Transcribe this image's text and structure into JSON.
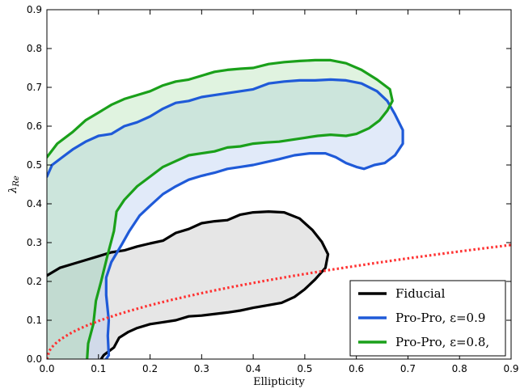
{
  "chart_data": {
    "type": "area",
    "title": "",
    "xlabel": "Ellipticity",
    "ylabel": "λ_Re",
    "xlim": [
      0.0,
      0.9
    ],
    "ylim": [
      0.0,
      0.9
    ],
    "xticks": [
      "0.0",
      "0.1",
      "0.2",
      "0.3",
      "0.4",
      "0.5",
      "0.6",
      "0.7",
      "0.8",
      "0.9"
    ],
    "yticks": [
      "0.0",
      "0.1",
      "0.2",
      "0.3",
      "0.4",
      "0.5",
      "0.6",
      "0.7",
      "0.8",
      "0.9"
    ],
    "grid": false,
    "legend_position": "lower-right",
    "series": [
      {
        "name": "Fiducial",
        "color": "#000000",
        "fill": "#c8c8c8",
        "fill_opacity": 0.45,
        "points": [
          [
            0.0,
            0.215
          ],
          [
            0.025,
            0.235
          ],
          [
            0.05,
            0.245
          ],
          [
            0.075,
            0.255
          ],
          [
            0.1,
            0.265
          ],
          [
            0.125,
            0.275
          ],
          [
            0.15,
            0.28
          ],
          [
            0.175,
            0.29
          ],
          [
            0.2,
            0.298
          ],
          [
            0.225,
            0.305
          ],
          [
            0.25,
            0.325
          ],
          [
            0.275,
            0.335
          ],
          [
            0.3,
            0.35
          ],
          [
            0.325,
            0.355
          ],
          [
            0.35,
            0.358
          ],
          [
            0.375,
            0.372
          ],
          [
            0.4,
            0.378
          ],
          [
            0.43,
            0.38
          ],
          [
            0.46,
            0.378
          ],
          [
            0.49,
            0.362
          ],
          [
            0.515,
            0.332
          ],
          [
            0.533,
            0.302
          ],
          [
            0.545,
            0.27
          ],
          [
            0.54,
            0.235
          ],
          [
            0.52,
            0.205
          ],
          [
            0.5,
            0.18
          ],
          [
            0.48,
            0.16
          ],
          [
            0.455,
            0.145
          ],
          [
            0.425,
            0.138
          ],
          [
            0.4,
            0.132
          ],
          [
            0.375,
            0.125
          ],
          [
            0.35,
            0.12
          ],
          [
            0.3,
            0.112
          ],
          [
            0.275,
            0.11
          ],
          [
            0.25,
            0.1
          ],
          [
            0.225,
            0.095
          ],
          [
            0.2,
            0.09
          ],
          [
            0.175,
            0.08
          ],
          [
            0.158,
            0.07
          ],
          [
            0.14,
            0.055
          ],
          [
            0.13,
            0.03
          ],
          [
            0.11,
            0.01
          ],
          [
            0.105,
            0.0
          ],
          [
            0.0,
            0.0
          ]
        ]
      },
      {
        "name": "Pro-Pro, ε=0.9",
        "color": "#1f5ad8",
        "fill": "#aac4ee",
        "fill_opacity": 0.35,
        "points": [
          [
            0.0,
            0.47
          ],
          [
            0.01,
            0.5
          ],
          [
            0.03,
            0.52
          ],
          [
            0.05,
            0.54
          ],
          [
            0.075,
            0.56
          ],
          [
            0.1,
            0.575
          ],
          [
            0.125,
            0.58
          ],
          [
            0.15,
            0.6
          ],
          [
            0.175,
            0.61
          ],
          [
            0.2,
            0.625
          ],
          [
            0.225,
            0.645
          ],
          [
            0.25,
            0.66
          ],
          [
            0.275,
            0.665
          ],
          [
            0.3,
            0.675
          ],
          [
            0.325,
            0.68
          ],
          [
            0.35,
            0.685
          ],
          [
            0.375,
            0.69
          ],
          [
            0.4,
            0.695
          ],
          [
            0.43,
            0.71
          ],
          [
            0.46,
            0.715
          ],
          [
            0.49,
            0.718
          ],
          [
            0.52,
            0.718
          ],
          [
            0.55,
            0.72
          ],
          [
            0.58,
            0.718
          ],
          [
            0.61,
            0.71
          ],
          [
            0.64,
            0.69
          ],
          [
            0.66,
            0.665
          ],
          [
            0.675,
            0.63
          ],
          [
            0.69,
            0.59
          ],
          [
            0.69,
            0.555
          ],
          [
            0.675,
            0.525
          ],
          [
            0.655,
            0.505
          ],
          [
            0.635,
            0.5
          ],
          [
            0.615,
            0.49
          ],
          [
            0.6,
            0.495
          ],
          [
            0.58,
            0.505
          ],
          [
            0.56,
            0.52
          ],
          [
            0.54,
            0.53
          ],
          [
            0.51,
            0.53
          ],
          [
            0.48,
            0.525
          ],
          [
            0.45,
            0.515
          ],
          [
            0.4,
            0.5
          ],
          [
            0.375,
            0.495
          ],
          [
            0.35,
            0.49
          ],
          [
            0.325,
            0.48
          ],
          [
            0.3,
            0.472
          ],
          [
            0.275,
            0.462
          ],
          [
            0.25,
            0.445
          ],
          [
            0.225,
            0.425
          ],
          [
            0.2,
            0.395
          ],
          [
            0.18,
            0.37
          ],
          [
            0.16,
            0.33
          ],
          [
            0.145,
            0.295
          ],
          [
            0.125,
            0.25
          ],
          [
            0.115,
            0.21
          ],
          [
            0.115,
            0.165
          ],
          [
            0.12,
            0.1
          ],
          [
            0.118,
            0.06
          ],
          [
            0.12,
            0.01
          ],
          [
            0.115,
            0.0
          ],
          [
            0.0,
            0.0
          ]
        ]
      },
      {
        "name": "Pro-Pro, ε=0.8,",
        "color": "#1aa01a",
        "fill": "#a6dca6",
        "fill_opacity": 0.35,
        "points": [
          [
            0.0,
            0.52
          ],
          [
            0.02,
            0.555
          ],
          [
            0.05,
            0.585
          ],
          [
            0.075,
            0.615
          ],
          [
            0.1,
            0.635
          ],
          [
            0.125,
            0.655
          ],
          [
            0.15,
            0.67
          ],
          [
            0.175,
            0.68
          ],
          [
            0.2,
            0.69
          ],
          [
            0.225,
            0.705
          ],
          [
            0.25,
            0.715
          ],
          [
            0.275,
            0.72
          ],
          [
            0.3,
            0.73
          ],
          [
            0.325,
            0.74
          ],
          [
            0.35,
            0.745
          ],
          [
            0.375,
            0.748
          ],
          [
            0.4,
            0.75
          ],
          [
            0.43,
            0.76
          ],
          [
            0.46,
            0.765
          ],
          [
            0.49,
            0.768
          ],
          [
            0.52,
            0.77
          ],
          [
            0.55,
            0.77
          ],
          [
            0.58,
            0.762
          ],
          [
            0.61,
            0.745
          ],
          [
            0.64,
            0.72
          ],
          [
            0.665,
            0.695
          ],
          [
            0.67,
            0.665
          ],
          [
            0.66,
            0.64
          ],
          [
            0.645,
            0.615
          ],
          [
            0.625,
            0.595
          ],
          [
            0.6,
            0.58
          ],
          [
            0.58,
            0.575
          ],
          [
            0.55,
            0.578
          ],
          [
            0.525,
            0.575
          ],
          [
            0.5,
            0.57
          ],
          [
            0.475,
            0.565
          ],
          [
            0.45,
            0.56
          ],
          [
            0.425,
            0.558
          ],
          [
            0.4,
            0.555
          ],
          [
            0.375,
            0.548
          ],
          [
            0.35,
            0.545
          ],
          [
            0.325,
            0.535
          ],
          [
            0.3,
            0.53
          ],
          [
            0.275,
            0.525
          ],
          [
            0.25,
            0.51
          ],
          [
            0.225,
            0.495
          ],
          [
            0.2,
            0.47
          ],
          [
            0.175,
            0.445
          ],
          [
            0.15,
            0.41
          ],
          [
            0.135,
            0.38
          ],
          [
            0.13,
            0.33
          ],
          [
            0.118,
            0.27
          ],
          [
            0.105,
            0.2
          ],
          [
            0.095,
            0.15
          ],
          [
            0.09,
            0.09
          ],
          [
            0.08,
            0.04
          ],
          [
            0.078,
            0.0
          ],
          [
            0.0,
            0.0
          ]
        ]
      }
    ],
    "reference_curve": {
      "color": "#ff3333",
      "style": "dotted",
      "formula": "0.31*sqrt(x)",
      "x_range": [
        0.0,
        0.9
      ]
    }
  }
}
